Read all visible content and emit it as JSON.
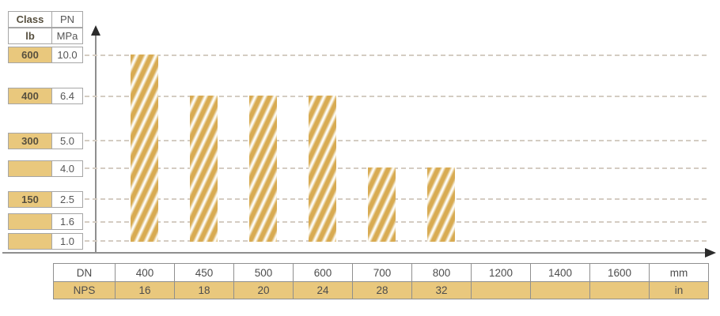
{
  "legend": {
    "header": {
      "class_label": "Class",
      "class_unit": "lb",
      "pn_label": "PN",
      "pn_unit": "MPa"
    },
    "rows": [
      {
        "class_lb": "600",
        "pn": "10.0"
      },
      {
        "class_lb": "400",
        "pn": "6.4"
      },
      {
        "class_lb": "300",
        "pn": "5.0"
      },
      {
        "class_lb": "",
        "pn": "4.0"
      },
      {
        "class_lb": "150",
        "pn": "2.5"
      },
      {
        "class_lb": "",
        "pn": "1.6"
      },
      {
        "class_lb": "",
        "pn": "1.0"
      }
    ]
  },
  "chart_data": {
    "type": "bar",
    "title": "",
    "y_ticks_pn_mpa": [
      "10.0",
      "6.4",
      "5.0",
      "4.0",
      "2.5",
      "1.6",
      "1.0"
    ],
    "y_ticks_class_lb": [
      "600",
      "400",
      "300",
      "",
      "150",
      "",
      ""
    ],
    "x_categories_dn_mm": [
      "400",
      "450",
      "500",
      "600",
      "700",
      "800",
      "1200",
      "1400",
      "1600"
    ],
    "x_categories_nps_in": [
      "16",
      "18",
      "20",
      "24",
      "28",
      "32",
      "",
      "",
      ""
    ],
    "bars": [
      {
        "dn": "400",
        "nps": "16",
        "pn": "10.0"
      },
      {
        "dn": "450",
        "nps": "18",
        "pn": "6.4"
      },
      {
        "dn": "500",
        "nps": "20",
        "pn": "6.4"
      },
      {
        "dn": "600",
        "nps": "24",
        "pn": "6.4"
      },
      {
        "dn": "700",
        "nps": "28",
        "pn": "4.0"
      },
      {
        "dn": "800",
        "nps": "32",
        "pn": "4.0"
      }
    ],
    "baseline_pn": "1.0",
    "grid": "dashed-horizontal",
    "legend_position": "top-left"
  },
  "bottom_table": {
    "row1_label": "DN",
    "row1_values": [
      "400",
      "450",
      "500",
      "600",
      "700",
      "800",
      "1200",
      "1400",
      "1600"
    ],
    "row1_unit": "mm",
    "row2_label": "NPS",
    "row2_values": [
      "16",
      "18",
      "20",
      "24",
      "28",
      "32",
      "",
      "",
      ""
    ],
    "row2_unit": "in"
  },
  "colors": {
    "gold_cell": "#e9c87d",
    "bar_gold": "#d8ab52",
    "bar_hatch": "#fdfcf7",
    "grid_line": "#d4ccc2",
    "table_border": "#8f8f8f",
    "axis": "#8f8f8f",
    "arrow": "#2b2b2b",
    "text": "#4d4d4d"
  }
}
